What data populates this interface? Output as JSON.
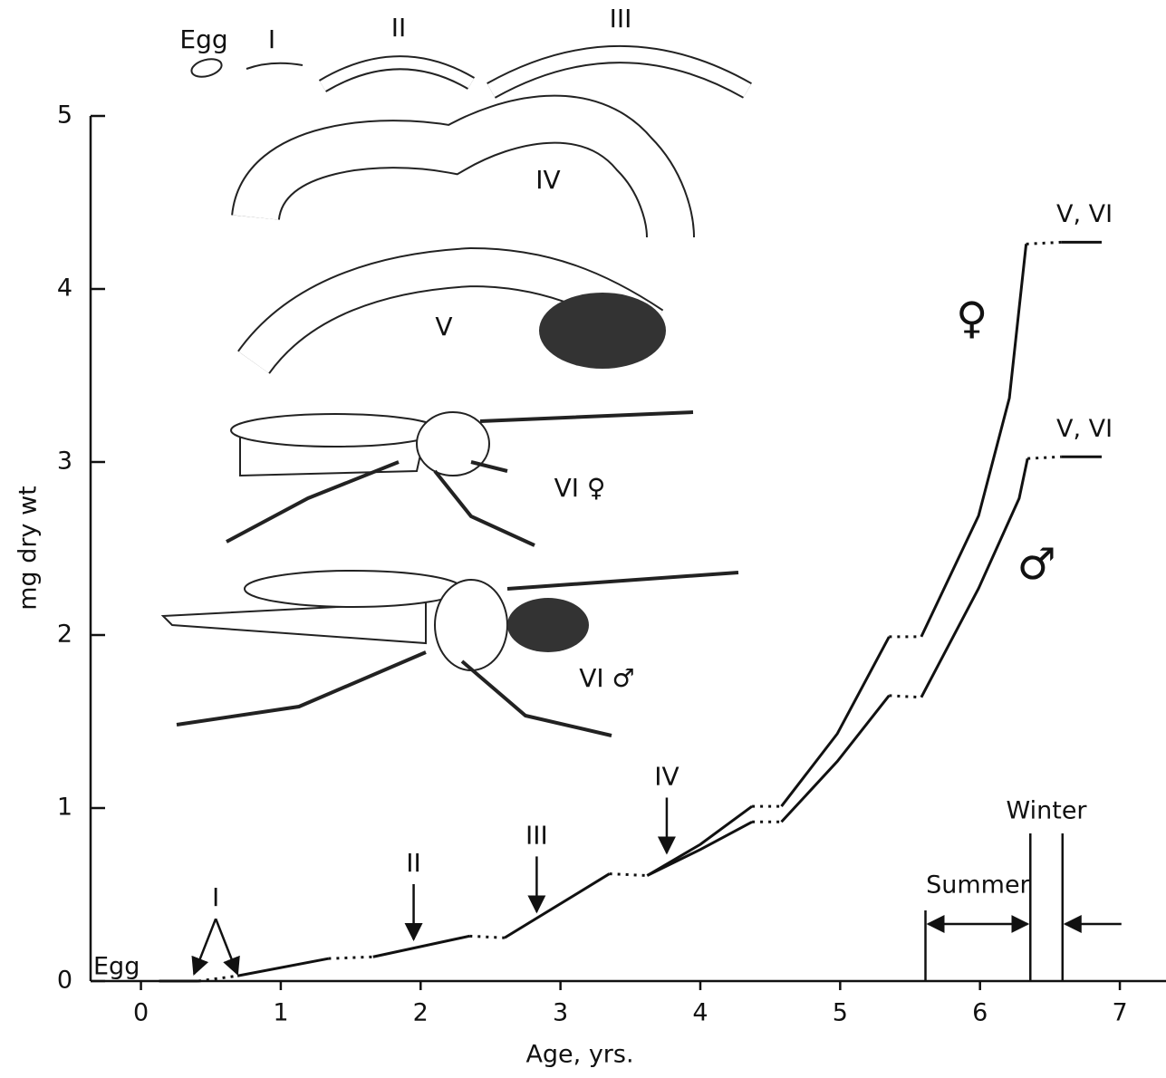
{
  "chart_data": {
    "type": "line",
    "x_label": "Age, yrs.",
    "y_label": "mg dry wt",
    "xlim": [
      -0.36,
      7.33
    ],
    "ylim": [
      0,
      5
    ],
    "xticks": [
      0,
      1,
      2,
      3,
      4,
      5,
      6,
      7
    ],
    "yticks": [
      0,
      1,
      2,
      3,
      4,
      5
    ],
    "color": "#111111",
    "egg_label": "Egg",
    "series": [
      {
        "name": "♀",
        "end_label": "V, VI",
        "x": [
          0.13,
          0.41,
          null,
          0.69,
          1.34,
          null,
          1.66,
          2.35,
          null,
          2.6,
          3.35,
          null,
          3.62,
          4.0,
          4.37,
          null,
          4.58,
          4.98,
          5.35,
          null,
          5.58,
          5.99,
          6.21,
          6.33,
          null,
          6.58,
          6.87
        ],
        "values": [
          0,
          0,
          null,
          0.03,
          0.13,
          null,
          0.14,
          0.26,
          null,
          0.25,
          0.62,
          null,
          0.61,
          0.79,
          1.01,
          null,
          1.01,
          1.43,
          1.99,
          null,
          1.99,
          2.69,
          3.37,
          4.26,
          null,
          4.27,
          4.27
        ]
      },
      {
        "name": "♂",
        "end_label": "V, VI",
        "x": [
          3.62,
          4.0,
          4.37,
          null,
          4.58,
          4.98,
          5.35,
          null,
          5.58,
          5.99,
          6.28,
          6.34,
          null,
          6.58,
          6.87
        ],
        "values": [
          0.61,
          0.76,
          0.92,
          null,
          0.92,
          1.27,
          1.65,
          null,
          1.64,
          2.27,
          2.79,
          3.02,
          null,
          3.03,
          3.03
        ]
      }
    ],
    "stage_arrows": [
      {
        "label": "I",
        "x": [
          0.38,
          0.69
        ],
        "y": [
          0.02,
          0.02
        ]
      },
      {
        "label": "II",
        "x": [
          1.95
        ],
        "y": [
          0.22
        ]
      },
      {
        "label": "III",
        "x": [
          2.83
        ],
        "y": [
          0.38
        ]
      },
      {
        "label": "IV",
        "x": [
          3.76
        ],
        "y": [
          0.72
        ]
      }
    ],
    "seasons": [
      {
        "label": "Summer",
        "x": [
          5.61,
          6.36
        ]
      },
      {
        "label": "Winter",
        "x": [
          6.36,
          6.59
        ]
      }
    ],
    "stage_drawings": [
      "Egg",
      "I",
      "II",
      "III",
      "IV",
      "V",
      "VI ♀",
      "VI ♂"
    ]
  }
}
